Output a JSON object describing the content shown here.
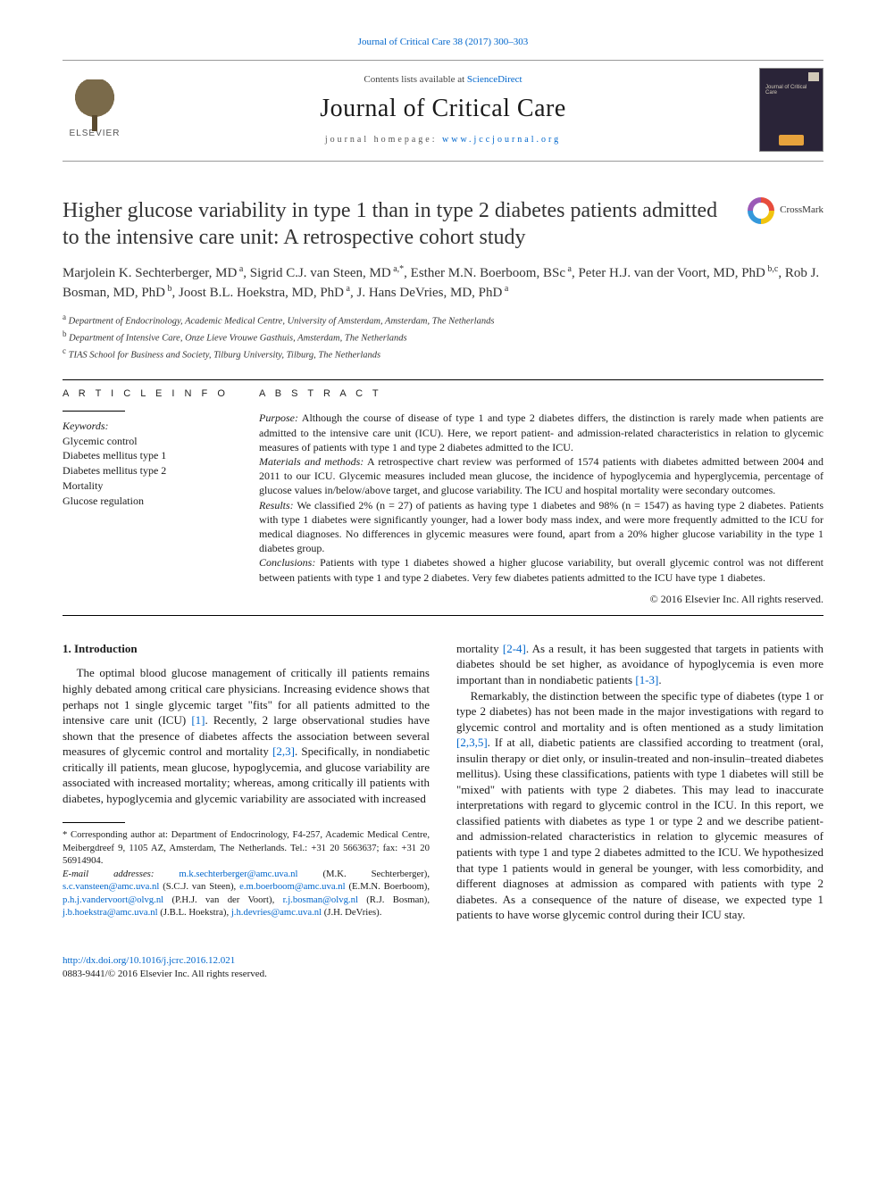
{
  "citation": "Journal of Critical Care 38 (2017) 300–303",
  "header": {
    "contents_prefix": "Contents lists available at ",
    "contents_link": "ScienceDirect",
    "journal_name": "Journal of Critical Care",
    "homepage_prefix": "journal homepage: ",
    "homepage_url": "www.jccjournal.org",
    "publisher": "ELSEVIER",
    "cover_text": "Journal of Critical Care"
  },
  "crossmark_label": "CrossMark",
  "title": "Higher glucose variability in type 1 than in type 2 diabetes patients admitted to the intensive care unit: A retrospective cohort study",
  "authors_html": "Marjolein K. Sechterberger, MD<sup> a</sup>, Sigrid C.J. van Steen, MD<sup> a,*</sup>, Esther M.N. Boerboom, BSc<sup> a</sup>, Peter H.J. van der Voort, MD, PhD<sup> b,c</sup>, Rob J. Bosman, MD, PhD<sup> b</sup>, Joost B.L. Hoekstra, MD, PhD<sup> a</sup>, J. Hans DeVries, MD, PhD<sup> a</sup>",
  "affiliations": [
    {
      "sup": "a",
      "text": "Department of Endocrinology, Academic Medical Centre, University of Amsterdam, Amsterdam, The Netherlands"
    },
    {
      "sup": "b",
      "text": "Department of Intensive Care, Onze Lieve Vrouwe Gasthuis, Amsterdam, The Netherlands"
    },
    {
      "sup": "c",
      "text": "TIAS School for Business and Society, Tilburg University, Tilburg, The Netherlands"
    }
  ],
  "article_info": {
    "head": "A R T I C L E   I N F O",
    "kw_label": "Keywords:",
    "keywords": [
      "Glycemic control",
      "Diabetes mellitus type 1",
      "Diabetes mellitus type 2",
      "Mortality",
      "Glucose regulation"
    ]
  },
  "abstract": {
    "head": "A B S T R A C T",
    "purpose_label": "Purpose:",
    "purpose": "Although the course of disease of type 1 and type 2 diabetes differs, the distinction is rarely made when patients are admitted to the intensive care unit (ICU). Here, we report patient- and admission-related characteristics in relation to glycemic measures of patients with type 1 and type 2 diabetes admitted to the ICU.",
    "methods_label": "Materials and methods:",
    "methods": "A retrospective chart review was performed of 1574 patients with diabetes admitted between 2004 and 2011 to our ICU. Glycemic measures included mean glucose, the incidence of hypoglycemia and hyperglycemia, percentage of glucose values in/below/above target, and glucose variability. The ICU and hospital mortality were secondary outcomes.",
    "results_label": "Results:",
    "results": "We classified 2% (n = 27) of patients as having type 1 diabetes and 98% (n = 1547) as having type 2 diabetes. Patients with type 1 diabetes were significantly younger, had a lower body mass index, and were more frequently admitted to the ICU for medical diagnoses. No differences in glycemic measures were found, apart from a 20% higher glucose variability in the type 1 diabetes group.",
    "conclusions_label": "Conclusions:",
    "conclusions": "Patients with type 1 diabetes showed a higher glucose variability, but overall glycemic control was not different between patients with type 1 and type 2 diabetes. Very few diabetes patients admitted to the ICU have type 1 diabetes.",
    "copyright": "© 2016 Elsevier Inc. All rights reserved."
  },
  "body": {
    "intro_head": "1. Introduction",
    "left_para": "The optimal blood glucose management of critically ill patients remains highly debated among critical care physicians. Increasing evidence shows that perhaps not 1 single glycemic target \"fits\" for all patients admitted to the intensive care unit (ICU) [1]. Recently, 2 large observational studies have shown that the presence of diabetes affects the association between several measures of glycemic control and mortality [2,3]. Specifically, in nondiabetic critically ill patients, mean glucose, hypoglycemia, and glucose variability are associated with increased mortality; whereas, among critically ill patients with diabetes, hypoglycemia and glycemic variability are associated with increased",
    "right_para1": "mortality [2-4]. As a result, it has been suggested that targets in patients with diabetes should be set higher, as avoidance of hypoglycemia is even more important than in nondiabetic patients [1-3].",
    "right_para2": "Remarkably, the distinction between the specific type of diabetes (type 1 or type 2 diabetes) has not been made in the major investigations with regard to glycemic control and mortality and is often mentioned as a study limitation [2,3,5]. If at all, diabetic patients are classified according to treatment (oral, insulin therapy or diet only, or insulin-treated and non-insulin–treated diabetes mellitus). Using these classifications, patients with type 1 diabetes will still be \"mixed\" with patients with type 2 diabetes. This may lead to inaccurate interpretations with regard to glycemic control in the ICU. In this report, we classified patients with diabetes as type 1 or type 2 and we describe patient- and admission-related characteristics in relation to glycemic measures of patients with type 1 and type 2 diabetes admitted to the ICU. We hypothesized that type 1 patients would in general be younger, with less comorbidity, and different diagnoses at admission as compared with patients with type 2 diabetes. As a consequence of the nature of disease, we expected type 1 patients to have worse glycemic control during their ICU stay.",
    "ref_links": {
      "r1": "[1]",
      "r23": "[2,3]",
      "r24": "[2-4]",
      "r13": "[1-3]",
      "r235": "[2,3,5]"
    }
  },
  "footnotes": {
    "corr": "* Corresponding author at: Department of Endocrinology, F4-257, Academic Medical Centre, Meibergdreef 9, 1105 AZ, Amsterdam, The Netherlands. Tel.: +31 20 5663637; fax: +31 20 56914904.",
    "email_label": "E-mail addresses:",
    "emails": [
      {
        "addr": "m.k.sechterberger@amc.uva.nl",
        "who": "(M.K. Sechterberger)"
      },
      {
        "addr": "s.c.vansteen@amc.uva.nl",
        "who": "(S.C.J. van Steen)"
      },
      {
        "addr": "e.m.boerboom@amc.uva.nl",
        "who": "(E.M.N. Boerboom)"
      },
      {
        "addr": "p.h.j.vandervoort@olvg.nl",
        "who": "(P.H.J. van der Voort)"
      },
      {
        "addr": "r.j.bosman@olvg.nl",
        "who": "(R.J. Bosman)"
      },
      {
        "addr": "j.b.hoekstra@amc.uva.nl",
        "who": "(J.B.L. Hoekstra)"
      },
      {
        "addr": "j.h.devries@amc.uva.nl",
        "who": "(J.H. DeVries)"
      }
    ]
  },
  "doi": {
    "url": "http://dx.doi.org/10.1016/j.jcrc.2016.12.021",
    "issn_line": "0883-9441/© 2016 Elsevier Inc. All rights reserved."
  },
  "colors": {
    "link": "#0066cc",
    "text": "#1a1a1a",
    "rule": "#000000",
    "muted": "#555555"
  }
}
